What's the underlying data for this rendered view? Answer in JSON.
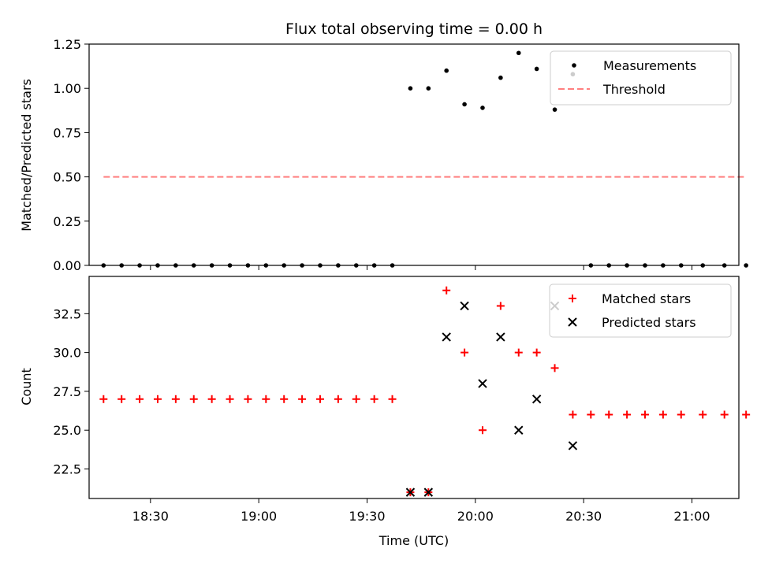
{
  "chart_data": [
    {
      "type": "scatter",
      "title": "Flux total observing time = 0.00 h",
      "xlabel": "",
      "ylabel": "Matched/Predicted stars",
      "ylim": [
        0,
        1.25
      ],
      "yticks": [
        "0.00",
        "0.25",
        "0.50",
        "0.75",
        "1.00",
        "1.25"
      ],
      "xlim": [
        "18:13",
        "21:13"
      ],
      "legend_position": "top-right",
      "series": [
        {
          "name": "Measurements",
          "marker": "dot",
          "color": "#000000",
          "points": [
            [
              "18:17",
              0
            ],
            [
              "18:22",
              0
            ],
            [
              "18:27",
              0
            ],
            [
              "18:32",
              0
            ],
            [
              "18:37",
              0
            ],
            [
              "18:42",
              0
            ],
            [
              "18:47",
              0
            ],
            [
              "18:52",
              0
            ],
            [
              "18:57",
              0
            ],
            [
              "19:02",
              0
            ],
            [
              "19:07",
              0
            ],
            [
              "19:12",
              0
            ],
            [
              "19:17",
              0
            ],
            [
              "19:22",
              0
            ],
            [
              "19:27",
              0
            ],
            [
              "19:32",
              0
            ],
            [
              "19:37",
              0
            ],
            [
              "19:42",
              1.0
            ],
            [
              "19:47",
              1.0
            ],
            [
              "19:52",
              1.1
            ],
            [
              "19:57",
              0.91
            ],
            [
              "20:02",
              0.89
            ],
            [
              "20:07",
              1.06
            ],
            [
              "20:12",
              1.2
            ],
            [
              "20:17",
              1.11
            ],
            [
              "20:22",
              0.88
            ],
            [
              "20:27",
              1.08
            ],
            [
              "20:32",
              0
            ],
            [
              "20:37",
              0
            ],
            [
              "20:42",
              0
            ],
            [
              "20:47",
              0
            ],
            [
              "20:52",
              0
            ],
            [
              "20:57",
              0
            ],
            [
              "21:03",
              0
            ],
            [
              "21:09",
              0
            ],
            [
              "21:15",
              0
            ]
          ]
        },
        {
          "name": "Threshold",
          "style": "dashed",
          "color": "#ff7f7f",
          "points": [
            [
              "18:17",
              0.5
            ],
            [
              "21:15",
              0.5
            ]
          ]
        }
      ]
    },
    {
      "type": "scatter",
      "title": "",
      "xlabel": "Time (UTC)",
      "ylabel": "Count",
      "ylim": [
        20.6,
        34.9
      ],
      "yticks": [
        "22.5",
        "25.0",
        "27.5",
        "30.0",
        "32.5"
      ],
      "xlim": [
        "18:13",
        "21:13"
      ],
      "xticks": [
        "18:30",
        "19:00",
        "19:30",
        "20:00",
        "20:30",
        "21:00"
      ],
      "legend_position": "top-right",
      "series": [
        {
          "name": "Matched stars",
          "marker": "plus",
          "color": "#ff0000",
          "points": [
            [
              "18:17",
              27
            ],
            [
              "18:22",
              27
            ],
            [
              "18:27",
              27
            ],
            [
              "18:32",
              27
            ],
            [
              "18:37",
              27
            ],
            [
              "18:42",
              27
            ],
            [
              "18:47",
              27
            ],
            [
              "18:52",
              27
            ],
            [
              "18:57",
              27
            ],
            [
              "19:02",
              27
            ],
            [
              "19:07",
              27
            ],
            [
              "19:12",
              27
            ],
            [
              "19:17",
              27
            ],
            [
              "19:22",
              27
            ],
            [
              "19:27",
              27
            ],
            [
              "19:32",
              27
            ],
            [
              "19:37",
              27
            ],
            [
              "19:42",
              21
            ],
            [
              "19:47",
              21
            ],
            [
              "19:52",
              34
            ],
            [
              "19:57",
              30
            ],
            [
              "20:02",
              25
            ],
            [
              "20:07",
              33
            ],
            [
              "20:12",
              30
            ],
            [
              "20:17",
              30
            ],
            [
              "20:22",
              29
            ],
            [
              "20:27",
              26
            ],
            [
              "20:32",
              26
            ],
            [
              "20:37",
              26
            ],
            [
              "20:42",
              26
            ],
            [
              "20:47",
              26
            ],
            [
              "20:52",
              26
            ],
            [
              "20:57",
              26
            ],
            [
              "21:03",
              26
            ],
            [
              "21:09",
              26
            ],
            [
              "21:15",
              26
            ]
          ]
        },
        {
          "name": "Predicted stars",
          "marker": "x",
          "color": "#000000",
          "points": [
            [
              "19:42",
              21
            ],
            [
              "19:47",
              21
            ],
            [
              "19:52",
              31
            ],
            [
              "19:57",
              33
            ],
            [
              "20:02",
              28
            ],
            [
              "20:07",
              31
            ],
            [
              "20:12",
              25
            ],
            [
              "20:17",
              27
            ],
            [
              "20:22",
              33
            ],
            [
              "20:27",
              24
            ]
          ]
        }
      ]
    }
  ]
}
